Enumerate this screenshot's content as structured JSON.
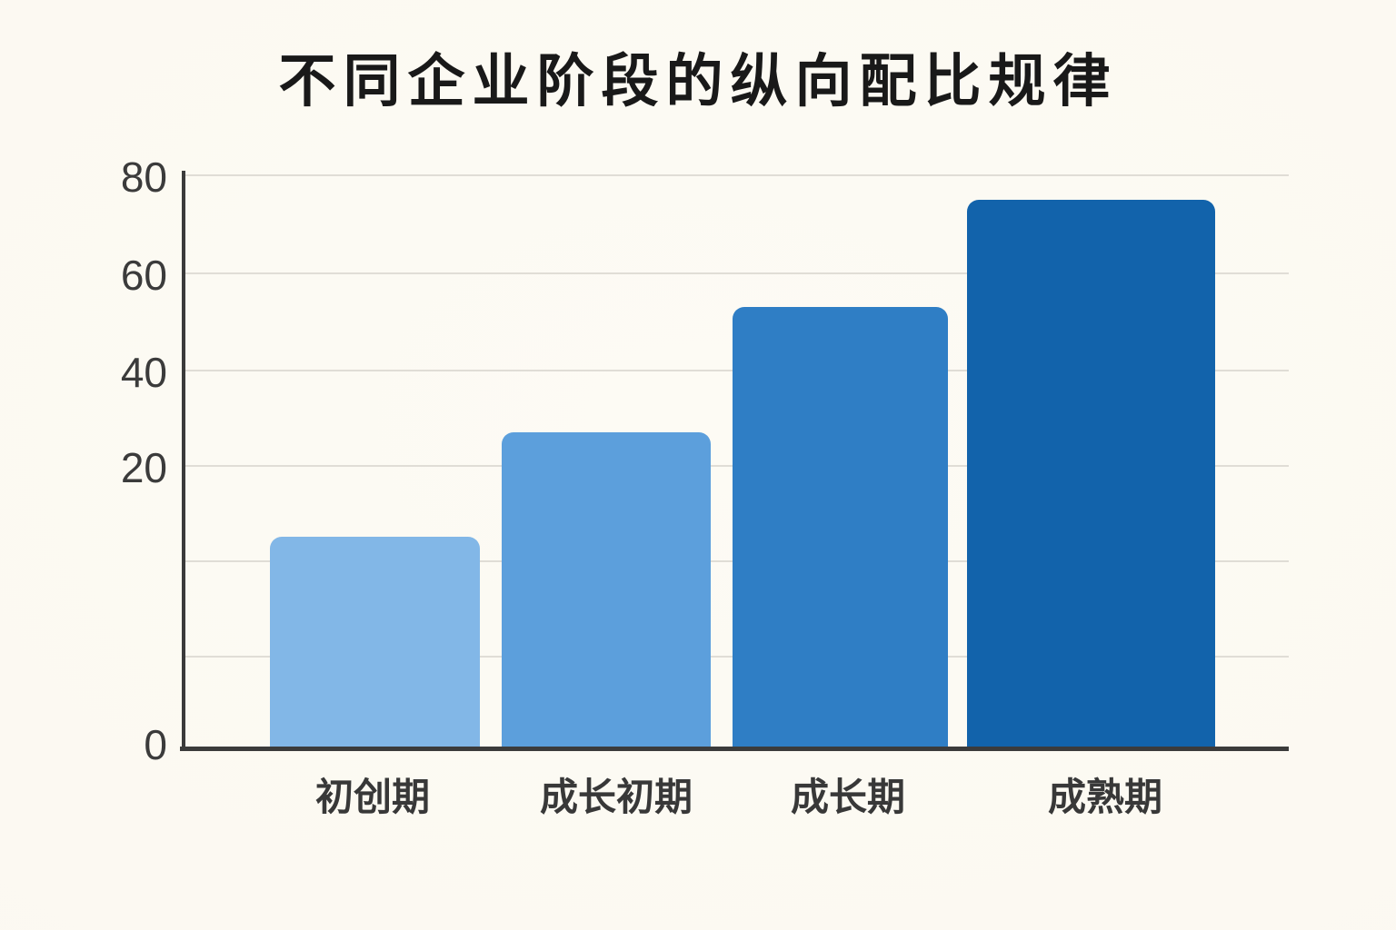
{
  "chart_data": {
    "type": "bar",
    "title": "不同企业阶段的纵向配比规律",
    "categories": [
      "初创期",
      "成长初期",
      "成长期",
      "成熟期"
    ],
    "values": [
      15,
      27,
      53,
      75
    ],
    "xlabel": "",
    "ylabel": "",
    "ylim": [
      0,
      80
    ],
    "yticks": [
      0,
      20,
      40,
      60,
      80
    ],
    "grid": true,
    "legend": false,
    "bar_colors": [
      "#82B7E7",
      "#5C9FDC",
      "#2F7EC5",
      "#1263AB"
    ],
    "background_color": "#FCFAF3",
    "gridline_color": "#E0DDD6",
    "axis_color": "#3B3B3B",
    "tick_label_color": "#3B3B3B",
    "category_label_color": "#383838",
    "title_color": "#191919"
  }
}
